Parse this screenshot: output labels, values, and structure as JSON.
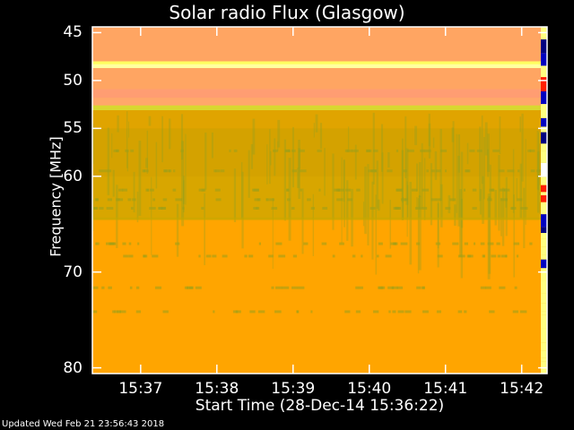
{
  "chart_data": {
    "type": "heatmap",
    "title": "Solar radio Flux (Glasgow)",
    "xlabel": "Start Time (28-Dec-14 15:36:22)",
    "ylabel": "Frequency [MHz]",
    "x_ticks": [
      "15:37",
      "15:38",
      "15:39",
      "15:40",
      "15:41",
      "15:42"
    ],
    "x_tick_seconds_from_start": [
      38,
      98,
      158,
      218,
      278,
      338
    ],
    "x_range_seconds": [
      0,
      358
    ],
    "y_ticks": [
      45,
      50,
      55,
      60,
      70,
      80
    ],
    "y_range": [
      44.4,
      80.6
    ],
    "y_direction": "increasing-downward",
    "bands": [
      {
        "from": 44.4,
        "to": 48.0,
        "color": "#ffa562"
      },
      {
        "from": 48.0,
        "to": 48.3,
        "color": "#ffff60"
      },
      {
        "from": 48.3,
        "to": 48.7,
        "color": "#ffffa0"
      },
      {
        "from": 48.7,
        "to": 50.9,
        "color": "#ffa562"
      },
      {
        "from": 50.9,
        "to": 51.8,
        "color": "#ff9d72"
      },
      {
        "from": 51.8,
        "to": 52.6,
        "color": "#ffa86a"
      },
      {
        "from": 52.6,
        "to": 53.1,
        "color": "#d8d830"
      },
      {
        "from": 53.1,
        "to": 55.0,
        "color": "#e0a400"
      },
      {
        "from": 55.0,
        "to": 60.0,
        "color": "#d4a200"
      },
      {
        "from": 60.0,
        "to": 64.5,
        "color": "#d8a600"
      },
      {
        "from": 64.5,
        "to": 80.6,
        "color": "#ffa500"
      }
    ],
    "streak_lines_mhz": [
      57.2,
      59.3,
      61.3,
      62.3,
      63.2,
      66.9,
      68.2,
      71.5,
      74.0
    ],
    "colors": {
      "background": "#000000",
      "axes": "#ffffff",
      "burst_low": "#0000c0",
      "burst_high": "#ff2000",
      "burst_yellow": "#ffff80"
    }
  },
  "footer": {
    "updated": "Updated Wed Feb 21 23:56:43 2018"
  }
}
